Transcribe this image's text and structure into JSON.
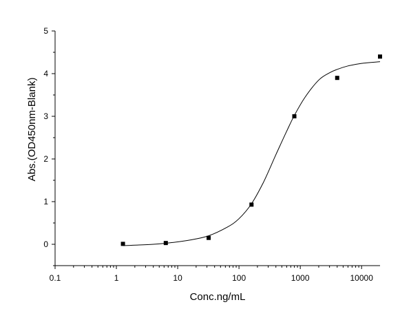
{
  "chart_data": {
    "type": "scatter",
    "title": "",
    "xlabel": "Conc.ng/mL",
    "ylabel": "Abs.(OD450nm-Blank)",
    "x_scale": "log",
    "xlim": [
      0.1,
      20000
    ],
    "ylim": [
      -0.5,
      5
    ],
    "x_ticks": [
      0.1,
      1,
      10,
      100,
      1000,
      10000
    ],
    "x_tick_labels": [
      "0.1",
      "1",
      "10",
      "100",
      "1000",
      "10000"
    ],
    "y_ticks": [
      0,
      1,
      2,
      3,
      4,
      5
    ],
    "y_tick_labels": [
      "0",
      "1",
      "2",
      "3",
      "4",
      "5"
    ],
    "grid": false,
    "legend": "none",
    "series": [
      {
        "kind": "points",
        "marker": "square",
        "color": "#000000",
        "x": [
          1.28,
          6.4,
          32,
          160,
          800,
          4000,
          20000
        ],
        "y": [
          0.01,
          0.03,
          0.15,
          0.93,
          3.0,
          3.9,
          4.4
        ]
      },
      {
        "kind": "fitted-curve",
        "color": "#000000",
        "x": [
          1.28,
          2,
          4,
          8,
          16,
          32,
          64,
          100,
          160,
          250,
          400,
          600,
          800,
          1200,
          2000,
          3000,
          4000,
          6000,
          10000,
          20000
        ],
        "y": [
          -0.03,
          -0.02,
          0.0,
          0.04,
          0.1,
          0.2,
          0.4,
          0.6,
          0.95,
          1.45,
          2.1,
          2.65,
          3.02,
          3.45,
          3.85,
          4.02,
          4.1,
          4.18,
          4.24,
          4.28
        ]
      }
    ]
  }
}
